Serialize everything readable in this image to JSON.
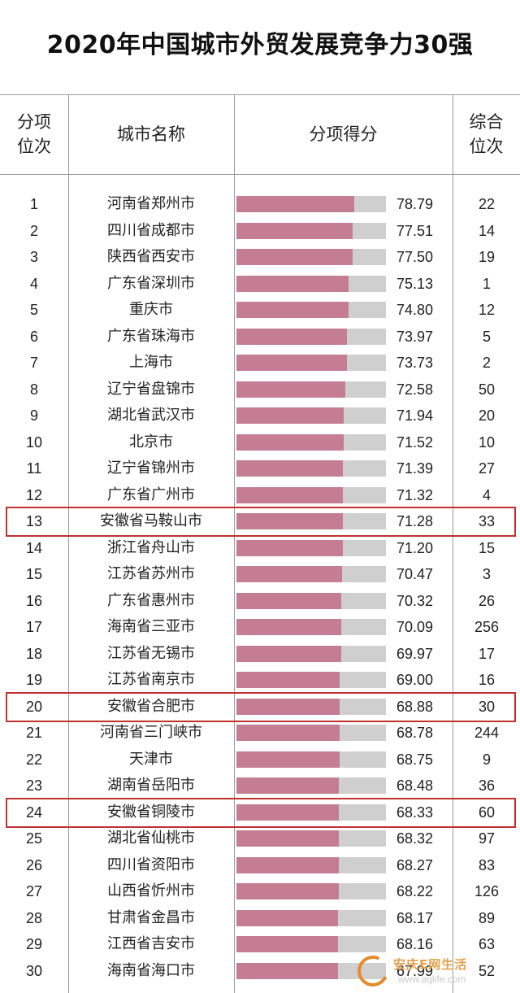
{
  "title": "2020年中国城市外贸发展竞争力30强",
  "headers": {
    "rank": "分项\n位次",
    "city": "城市名称",
    "score": "分项得分",
    "overall": "综合\n位次"
  },
  "colors": {
    "bar": "#c47d93",
    "bar_background": "#cfcfcf",
    "highlight_border": "#c0312f"
  },
  "highlighted_ranks": [
    13,
    20,
    24
  ],
  "watermark": {
    "brand": "安庆E网生活",
    "url": "www.aqlife.com"
  },
  "chart_data": {
    "type": "bar",
    "title": "2020年中国城市外贸发展竞争力30强",
    "columns": [
      "分项位次",
      "城市名称",
      "分项得分",
      "综合位次"
    ],
    "rows": [
      {
        "rank": "1",
        "city": "河南省郑州市",
        "score": "78.79",
        "overall": "22"
      },
      {
        "rank": "2",
        "city": "四川省成都市",
        "score": "77.51",
        "overall": "14"
      },
      {
        "rank": "3",
        "city": "陕西省西安市",
        "score": "77.50",
        "overall": "19"
      },
      {
        "rank": "4",
        "city": "广东省深圳市",
        "score": "75.13",
        "overall": "1"
      },
      {
        "rank": "5",
        "city": "重庆市",
        "score": "74.80",
        "overall": "12"
      },
      {
        "rank": "6",
        "city": "广东省珠海市",
        "score": "73.97",
        "overall": "5"
      },
      {
        "rank": "7",
        "city": "上海市",
        "score": "73.73",
        "overall": "2"
      },
      {
        "rank": "8",
        "city": "辽宁省盘锦市",
        "score": "72.58",
        "overall": "50"
      },
      {
        "rank": "9",
        "city": "湖北省武汉市",
        "score": "71.94",
        "overall": "20"
      },
      {
        "rank": "10",
        "city": "北京市",
        "score": "71.52",
        "overall": "10"
      },
      {
        "rank": "11",
        "city": "辽宁省锦州市",
        "score": "71.39",
        "overall": "27"
      },
      {
        "rank": "12",
        "city": "广东省广州市",
        "score": "71.32",
        "overall": "4"
      },
      {
        "rank": "13",
        "city": "安徽省马鞍山市",
        "score": "71.28",
        "overall": "33"
      },
      {
        "rank": "14",
        "city": "浙江省舟山市",
        "score": "71.20",
        "overall": "15"
      },
      {
        "rank": "15",
        "city": "江苏省苏州市",
        "score": "70.47",
        "overall": "3"
      },
      {
        "rank": "16",
        "city": "广东省惠州市",
        "score": "70.32",
        "overall": "26"
      },
      {
        "rank": "17",
        "city": "海南省三亚市",
        "score": "70.09",
        "overall": "256"
      },
      {
        "rank": "18",
        "city": "江苏省无锡市",
        "score": "69.97",
        "overall": "17"
      },
      {
        "rank": "19",
        "city": "江苏省南京市",
        "score": "69.00",
        "overall": "16"
      },
      {
        "rank": "20",
        "city": "安徽省合肥市",
        "score": "68.88",
        "overall": "30"
      },
      {
        "rank": "21",
        "city": "河南省三门峡市",
        "score": "68.78",
        "overall": "244"
      },
      {
        "rank": "22",
        "city": "天津市",
        "score": "68.75",
        "overall": "9"
      },
      {
        "rank": "23",
        "city": "湖南省岳阳市",
        "score": "68.48",
        "overall": "36"
      },
      {
        "rank": "24",
        "city": "安徽省铜陵市",
        "score": "68.33",
        "overall": "60"
      },
      {
        "rank": "25",
        "city": "湖北省仙桃市",
        "score": "68.32",
        "overall": "97"
      },
      {
        "rank": "26",
        "city": "四川省资阳市",
        "score": "68.27",
        "overall": "83"
      },
      {
        "rank": "27",
        "city": "山西省忻州市",
        "score": "68.22",
        "overall": "126"
      },
      {
        "rank": "28",
        "city": "甘肃省金昌市",
        "score": "68.17",
        "overall": "89"
      },
      {
        "rank": "29",
        "city": "江西省吉安市",
        "score": "68.16",
        "overall": "63"
      },
      {
        "rank": "30",
        "city": "海南省海口市",
        "score": "67.99",
        "overall": "52"
      }
    ],
    "xlim": [
      0,
      100
    ]
  }
}
